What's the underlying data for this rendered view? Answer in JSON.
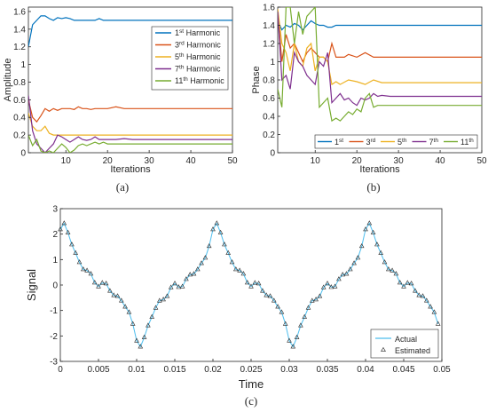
{
  "chart_data": [
    {
      "type": "line",
      "panel": "(a)",
      "xlabel": "Iterations",
      "ylabel": "Amplitude",
      "xlim": [
        1,
        50
      ],
      "ylim": [
        0,
        1.65
      ],
      "xticks": [
        10,
        20,
        30,
        40,
        50
      ],
      "yticks": [
        0,
        0.2,
        0.4,
        0.6,
        0.8,
        1,
        1.2,
        1.4,
        1.6
      ],
      "ytick_labels": [
        "0",
        "0.2",
        "0.4",
        "0.6",
        "0.8",
        "1",
        "1.2",
        "1.4",
        "1.6"
      ],
      "legend_position": "right",
      "legend": [
        {
          "base": "1",
          "sup": "st",
          "rest": " Harmonic"
        },
        {
          "base": "3",
          "sup": "rd",
          "rest": " Harmonic"
        },
        {
          "base": "5",
          "sup": "th",
          "rest": " Harmonic"
        },
        {
          "base": "7",
          "sup": "th",
          "rest": " Harmonic"
        },
        {
          "base": "11",
          "sup": "th",
          "rest": " Harmonic"
        }
      ],
      "series": [
        {
          "color": "#0072BD",
          "x": [
            1,
            2,
            3,
            4,
            5,
            6,
            7,
            8,
            9,
            10,
            11,
            12,
            13,
            14,
            15,
            16,
            17,
            18,
            19,
            20,
            22,
            25,
            30,
            35,
            40,
            45,
            50
          ],
          "y": [
            1.2,
            1.45,
            1.5,
            1.55,
            1.55,
            1.52,
            1.5,
            1.53,
            1.52,
            1.53,
            1.52,
            1.5,
            1.5,
            1.5,
            1.5,
            1.5,
            1.5,
            1.52,
            1.5,
            1.5,
            1.5,
            1.5,
            1.5,
            1.5,
            1.5,
            1.5,
            1.5
          ]
        },
        {
          "color": "#D95319",
          "x": [
            1,
            2,
            3,
            4,
            5,
            6,
            7,
            8,
            9,
            10,
            11,
            12,
            13,
            14,
            15,
            16,
            17,
            18,
            19,
            20,
            22,
            24,
            26,
            30,
            35,
            40,
            45,
            50
          ],
          "y": [
            0.6,
            0.4,
            0.35,
            0.42,
            0.5,
            0.47,
            0.5,
            0.48,
            0.5,
            0.5,
            0.5,
            0.49,
            0.52,
            0.5,
            0.5,
            0.49,
            0.5,
            0.5,
            0.5,
            0.5,
            0.52,
            0.5,
            0.5,
            0.5,
            0.5,
            0.5,
            0.5,
            0.5
          ]
        },
        {
          "color": "#EDB120",
          "x": [
            1,
            2,
            3,
            4,
            5,
            6,
            7,
            8,
            9,
            10,
            11,
            12,
            13,
            14,
            15,
            16,
            18,
            20,
            22,
            25,
            30,
            35,
            40,
            45,
            50
          ],
          "y": [
            0.45,
            0.3,
            0.25,
            0.25,
            0.3,
            0.22,
            0.2,
            0.2,
            0.2,
            0.2,
            0.2,
            0.2,
            0.2,
            0.2,
            0.2,
            0.2,
            0.2,
            0.2,
            0.2,
            0.2,
            0.2,
            0.2,
            0.2,
            0.2,
            0.2
          ]
        },
        {
          "color": "#7E2F8E",
          "x": [
            1,
            2,
            3,
            4,
            5,
            6,
            7,
            8,
            9,
            10,
            11,
            12,
            13,
            14,
            15,
            16,
            17,
            18,
            19,
            20,
            22,
            24,
            26,
            30,
            35,
            40,
            45,
            50
          ],
          "y": [
            0.65,
            0.25,
            0.1,
            0.05,
            0.0,
            0.05,
            0.1,
            0.2,
            0.18,
            0.15,
            0.12,
            0.15,
            0.18,
            0.15,
            0.14,
            0.15,
            0.18,
            0.15,
            0.15,
            0.15,
            0.15,
            0.16,
            0.15,
            0.15,
            0.15,
            0.15,
            0.15,
            0.15
          ]
        },
        {
          "color": "#77AC30",
          "x": [
            1,
            2,
            3,
            4,
            5,
            6,
            7,
            8,
            9,
            10,
            11,
            12,
            13,
            14,
            15,
            16,
            17,
            18,
            19,
            20,
            22,
            25,
            30,
            35,
            40,
            45,
            50
          ],
          "y": [
            0.2,
            0.08,
            0.15,
            0.02,
            0.0,
            0.02,
            0.0,
            0.05,
            0.1,
            0.06,
            0.0,
            0.03,
            0.08,
            0.1,
            0.08,
            0.1,
            0.12,
            0.1,
            0.12,
            0.1,
            0.1,
            0.1,
            0.1,
            0.1,
            0.1,
            0.1,
            0.1
          ]
        }
      ]
    },
    {
      "type": "line",
      "panel": "(b)",
      "xlabel": "Iterations",
      "ylabel": "Phase",
      "xlim": [
        1,
        50
      ],
      "ylim": [
        0,
        1.6
      ],
      "xticks": [
        10,
        20,
        30,
        40,
        50
      ],
      "yticks": [
        0,
        0.2,
        0.4,
        0.6,
        0.8,
        1,
        1.2,
        1.4,
        1.6
      ],
      "ytick_labels": [
        "0",
        "0.2",
        "0.4",
        "0.6",
        "0.8",
        "1",
        "1.2",
        "1.4",
        "1.6"
      ],
      "legend_position": "bottom",
      "legend": [
        {
          "base": "1",
          "sup": "st",
          "rest": ""
        },
        {
          "base": "3",
          "sup": "rd",
          "rest": ""
        },
        {
          "base": "5",
          "sup": "th",
          "rest": ""
        },
        {
          "base": "7",
          "sup": "th",
          "rest": ""
        },
        {
          "base": "11",
          "sup": "th",
          "rest": ""
        }
      ],
      "series": [
        {
          "color": "#0072BD",
          "x": [
            1,
            2,
            3,
            4,
            5,
            6,
            7,
            8,
            9,
            10,
            11,
            12,
            13,
            14,
            15,
            16,
            18,
            20,
            25,
            30,
            35,
            40,
            45,
            50
          ],
          "y": [
            1.45,
            1.35,
            1.4,
            1.38,
            1.42,
            1.4,
            1.35,
            1.4,
            1.45,
            1.42,
            1.4,
            1.4,
            1.38,
            1.38,
            1.4,
            1.4,
            1.4,
            1.4,
            1.4,
            1.4,
            1.4,
            1.4,
            1.4,
            1.4
          ]
        },
        {
          "color": "#D95319",
          "x": [
            1,
            2,
            3,
            4,
            5,
            6,
            7,
            8,
            9,
            10,
            11,
            12,
            13,
            14,
            15,
            16,
            17,
            18,
            20,
            22,
            24,
            26,
            30,
            35,
            40,
            45,
            50
          ],
          "y": [
            1.55,
            1.0,
            1.3,
            1.15,
            1.2,
            1.1,
            1.0,
            1.1,
            1.15,
            1.1,
            1.05,
            1.05,
            1.0,
            1.2,
            1.05,
            1.05,
            1.05,
            1.08,
            1.05,
            1.1,
            1.05,
            1.05,
            1.05,
            1.05,
            1.05,
            1.05,
            1.05
          ]
        },
        {
          "color": "#EDB120",
          "x": [
            1,
            2,
            3,
            4,
            5,
            6,
            7,
            8,
            9,
            10,
            11,
            12,
            13,
            14,
            15,
            16,
            18,
            20,
            22,
            24,
            26,
            30,
            35,
            40,
            45,
            50
          ],
          "y": [
            1.58,
            1.2,
            1.1,
            0.9,
            1.2,
            1.0,
            0.95,
            1.15,
            1.2,
            0.9,
            1.05,
            1.05,
            1.0,
            0.75,
            0.78,
            0.75,
            0.8,
            0.78,
            0.75,
            0.8,
            0.77,
            0.77,
            0.77,
            0.77,
            0.77,
            0.77
          ]
        },
        {
          "color": "#7E2F8E",
          "x": [
            1,
            2,
            3,
            4,
            5,
            6,
            7,
            8,
            9,
            10,
            11,
            12,
            13,
            14,
            15,
            16,
            17,
            18,
            19,
            20,
            21,
            22,
            23,
            24,
            25,
            26,
            28,
            30,
            35,
            40,
            45,
            50
          ],
          "y": [
            1.55,
            0.8,
            0.85,
            0.7,
            1.1,
            1.0,
            0.95,
            0.85,
            0.8,
            0.75,
            1.0,
            0.95,
            1.1,
            0.55,
            0.6,
            0.65,
            0.58,
            0.6,
            0.55,
            0.52,
            0.6,
            0.58,
            0.6,
            0.65,
            0.62,
            0.63,
            0.62,
            0.62,
            0.62,
            0.62,
            0.62,
            0.62
          ]
        },
        {
          "color": "#77AC30",
          "x": [
            1,
            2,
            3,
            4,
            5,
            6,
            7,
            8,
            9,
            10,
            11,
            12,
            13,
            14,
            15,
            16,
            17,
            18,
            19,
            20,
            21,
            22,
            23,
            24,
            25,
            26,
            28,
            30,
            35,
            40,
            45,
            50
          ],
          "y": [
            0.7,
            0.5,
            1.6,
            1.6,
            1.2,
            1.55,
            1.3,
            1.5,
            1.55,
            1.6,
            0.5,
            0.55,
            0.6,
            0.35,
            0.38,
            0.35,
            0.4,
            0.45,
            0.42,
            0.48,
            0.45,
            0.6,
            0.65,
            0.5,
            0.52,
            0.52,
            0.52,
            0.52,
            0.52,
            0.52,
            0.52,
            0.52
          ]
        }
      ]
    },
    {
      "type": "line",
      "panel": "(c)",
      "xlabel": "Time",
      "ylabel": "Signal",
      "xlim": [
        0,
        0.05
      ],
      "ylim": [
        -3,
        3
      ],
      "xticks": [
        0,
        0.005,
        0.01,
        0.015,
        0.02,
        0.025,
        0.03,
        0.035,
        0.04,
        0.045,
        0.05
      ],
      "xtick_labels": [
        "0",
        "0.005",
        "0.01",
        "0.015",
        "0.02",
        "0.025",
        "0.03",
        "0.035",
        "0.04",
        "0.045",
        "0.05"
      ],
      "yticks": [
        -3,
        -2,
        -1,
        0,
        1,
        2,
        3
      ],
      "ytick_labels": [
        "-3",
        "-2",
        "-1",
        "0",
        "1",
        "2",
        "3"
      ],
      "legend_position": "bottom-right",
      "series": [
        {
          "name": "Actual",
          "style": "line",
          "color": "#4DBEEE"
        },
        {
          "name": "Estimated",
          "style": "markers",
          "marker": "triangle",
          "color": "#262626"
        }
      ],
      "signal": {
        "x_range": [
          0,
          0.0495
        ],
        "samples": 100,
        "period": 0.02,
        "amplitudes": [
          1.5,
          0.5,
          0.2,
          0.15,
          0.1
        ],
        "harmonics": [
          1,
          3,
          5,
          7,
          11
        ],
        "phases": [
          1.4,
          1.05,
          0.77,
          0.62,
          0.52
        ]
      }
    }
  ]
}
